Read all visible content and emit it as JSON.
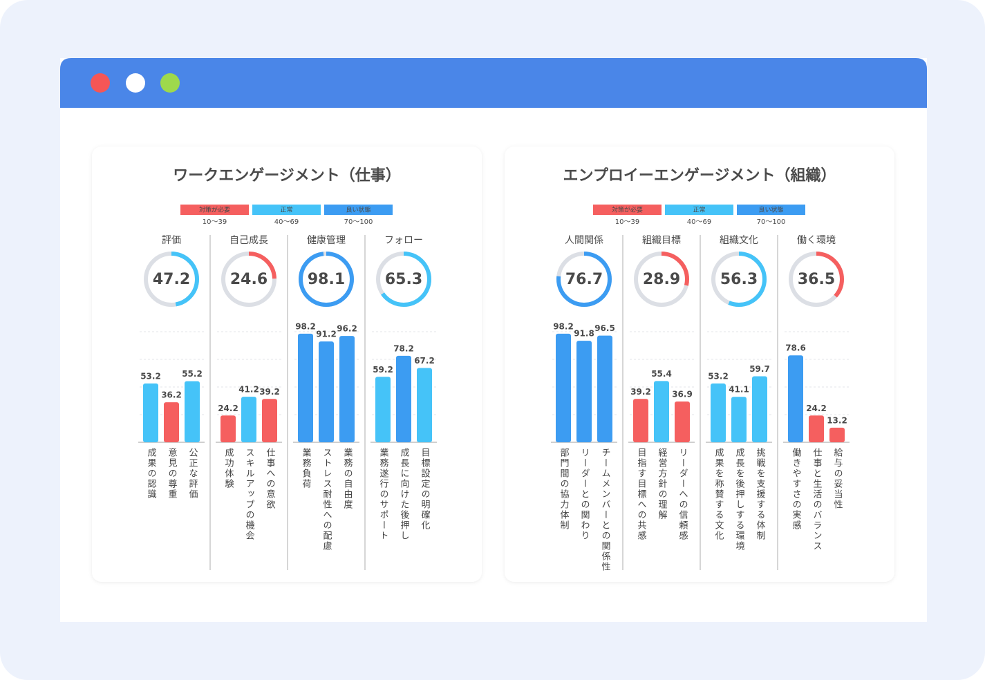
{
  "panels": [
    {
      "type": "gauge-bar",
      "title": "ワークエンゲージメント（仕事）",
      "legend": [
        {
          "label": "対策が必要",
          "range": "10〜39",
          "color": "#f55f5f"
        },
        {
          "label": "正常",
          "range": "40〜69",
          "color": "#45c3f8"
        },
        {
          "label": "良い状態",
          "range": "70〜100",
          "color": "#3c9cf2"
        }
      ],
      "ylim": [
        0,
        100
      ],
      "yticks": [
        0,
        25,
        50,
        75,
        100
      ],
      "grid": true,
      "groups": [
        {
          "name": "評価",
          "score": 47.2,
          "score_color": "#45c3f8",
          "items": [
            "成果の認識",
            "意見の尊重",
            "公正な評価"
          ],
          "values": [
            53.2,
            36.2,
            55.2
          ],
          "colors": [
            "#45c3f8",
            "#f55f5f",
            "#45c3f8"
          ]
        },
        {
          "name": "自己成長",
          "score": 24.6,
          "score_color": "#f55f5f",
          "items": [
            "成功体験",
            "スキルアップの機会",
            "仕事への意欲"
          ],
          "values": [
            24.2,
            41.2,
            39.2
          ],
          "colors": [
            "#f55f5f",
            "#45c3f8",
            "#f55f5f"
          ]
        },
        {
          "name": "健康管理",
          "score": 98.1,
          "score_color": "#3c9cf2",
          "items": [
            "業務負荷",
            "ストレス耐性への配慮",
            "業務の自由度"
          ],
          "values": [
            98.2,
            91.2,
            96.2
          ],
          "colors": [
            "#3c9cf2",
            "#3c9cf2",
            "#3c9cf2"
          ]
        },
        {
          "name": "フォロー",
          "score": 65.3,
          "score_color": "#45c3f8",
          "items": [
            "業務遂行のサポート",
            "成長に向けた後押し",
            "目標設定の明確化"
          ],
          "values": [
            59.2,
            78.2,
            67.2
          ],
          "colors": [
            "#45c3f8",
            "#3c9cf2",
            "#45c3f8"
          ]
        }
      ]
    },
    {
      "type": "gauge-bar",
      "title": "エンプロイーエンゲージメント（組織）",
      "legend": [
        {
          "label": "対策が必要",
          "range": "10〜39",
          "color": "#f55f5f"
        },
        {
          "label": "正常",
          "range": "40〜69",
          "color": "#45c3f8"
        },
        {
          "label": "良い状態",
          "range": "70〜100",
          "color": "#3c9cf2"
        }
      ],
      "ylim": [
        0,
        100
      ],
      "yticks": [
        0,
        25,
        50,
        75,
        100
      ],
      "grid": true,
      "groups": [
        {
          "name": "人間関係",
          "score": 76.7,
          "score_color": "#3c9cf2",
          "items": [
            "部門間の協力体制",
            "リーダーとの関わり",
            "チームメンバーとの関係性"
          ],
          "values": [
            98.2,
            91.8,
            96.5
          ],
          "colors": [
            "#3c9cf2",
            "#3c9cf2",
            "#3c9cf2"
          ]
        },
        {
          "name": "組織目標",
          "score": 28.9,
          "score_color": "#f55f5f",
          "items": [
            "目指す目標への共感",
            "経営方針の理解",
            "リーダーへの信頼感"
          ],
          "values": [
            39.2,
            55.4,
            36.9
          ],
          "colors": [
            "#f55f5f",
            "#45c3f8",
            "#f55f5f"
          ]
        },
        {
          "name": "組織文化",
          "score": 56.3,
          "score_color": "#45c3f8",
          "items": [
            "成果を称賛する文化",
            "成長を後押しする環境",
            "挑戦を支援する体制"
          ],
          "values": [
            53.2,
            41.1,
            59.7
          ],
          "colors": [
            "#45c3f8",
            "#45c3f8",
            "#45c3f8"
          ]
        },
        {
          "name": "働く環境",
          "score": 36.5,
          "score_color": "#f55f5f",
          "items": [
            "働きやすさの実感",
            "仕事と生活のバランス",
            "給与の妥当性"
          ],
          "values": [
            78.6,
            24.2,
            13.2
          ],
          "colors": [
            "#3c9cf2",
            "#f55f5f",
            "#f55f5f"
          ]
        }
      ]
    }
  ]
}
